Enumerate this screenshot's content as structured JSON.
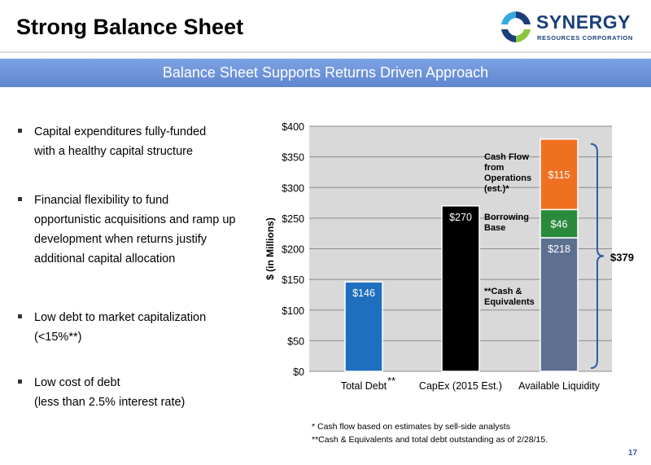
{
  "slide": {
    "title": "Strong Balance Sheet",
    "banner": "Balance Sheet Supports Returns Driven Approach",
    "page_number": "17"
  },
  "logo": {
    "name": "SYNERGY",
    "sub": "RESOURCES CORPORATION"
  },
  "bullets": [
    [
      "Capital expenditures fully-funded",
      "with a healthy capital structure"
    ],
    [
      "Financial flexibility to fund",
      "opportunistic acquisitions and ramp up",
      "development when returns justify",
      "additional capital allocation"
    ],
    [
      "Low debt to market capitalization",
      "(<15%**)"
    ],
    [
      "Low cost of debt",
      "(less than 2.5% interest rate)"
    ]
  ],
  "footnotes": [
    "* Cash flow based on estimates by sell-side analysts",
    "**Cash & Equivalents and total debt outstanding as of 2/28/15."
  ],
  "chart_data": {
    "type": "bar",
    "ylabel": "$ (in Millions)",
    "ylim": [
      0,
      400
    ],
    "yticks": [
      0,
      50,
      100,
      150,
      200,
      250,
      300,
      350,
      400
    ],
    "ytick_labels": [
      "$0",
      "$50",
      "$100",
      "$150",
      "$200",
      "$250",
      "$300",
      "$350",
      "$400"
    ],
    "grid": true,
    "categories": [
      "Total Debt",
      "CapEx (2015 Est.)",
      "Available Liquidity"
    ],
    "category_suffix": [
      "**",
      "",
      ""
    ],
    "bars": [
      {
        "category": "Total Debt",
        "value": 146,
        "label": "$146",
        "color": "#1f6fbf"
      },
      {
        "category": "CapEx (2015 Est.)",
        "value": 270,
        "label": "$270",
        "color": "#000000"
      },
      {
        "category": "Available Liquidity",
        "stack": [
          {
            "name": "Cash & Equivalents",
            "value": 218,
            "label": "$218",
            "color": "#5e7090"
          },
          {
            "name": "Borrowing Base",
            "value": 46,
            "label": "$46",
            "color": "#2a8a3c"
          },
          {
            "name": "Cash Flow from Operations (est.)",
            "value": 115,
            "label": "$115",
            "color": "#f07022"
          }
        ]
      }
    ],
    "annotations": [
      {
        "lines": [
          "Cash Flow",
          "from",
          "Operations",
          "(est.)*"
        ],
        "segment": 2
      },
      {
        "lines": [
          "Borrowing",
          "Base"
        ],
        "segment": 1
      },
      {
        "lines": [
          "**Cash &",
          "Equivalents"
        ],
        "segment": 0
      }
    ],
    "total": {
      "value": 379,
      "label": "$379"
    },
    "colors": {
      "plot_bg": "#d9d9d9",
      "brace": "#2f5ba8"
    }
  }
}
